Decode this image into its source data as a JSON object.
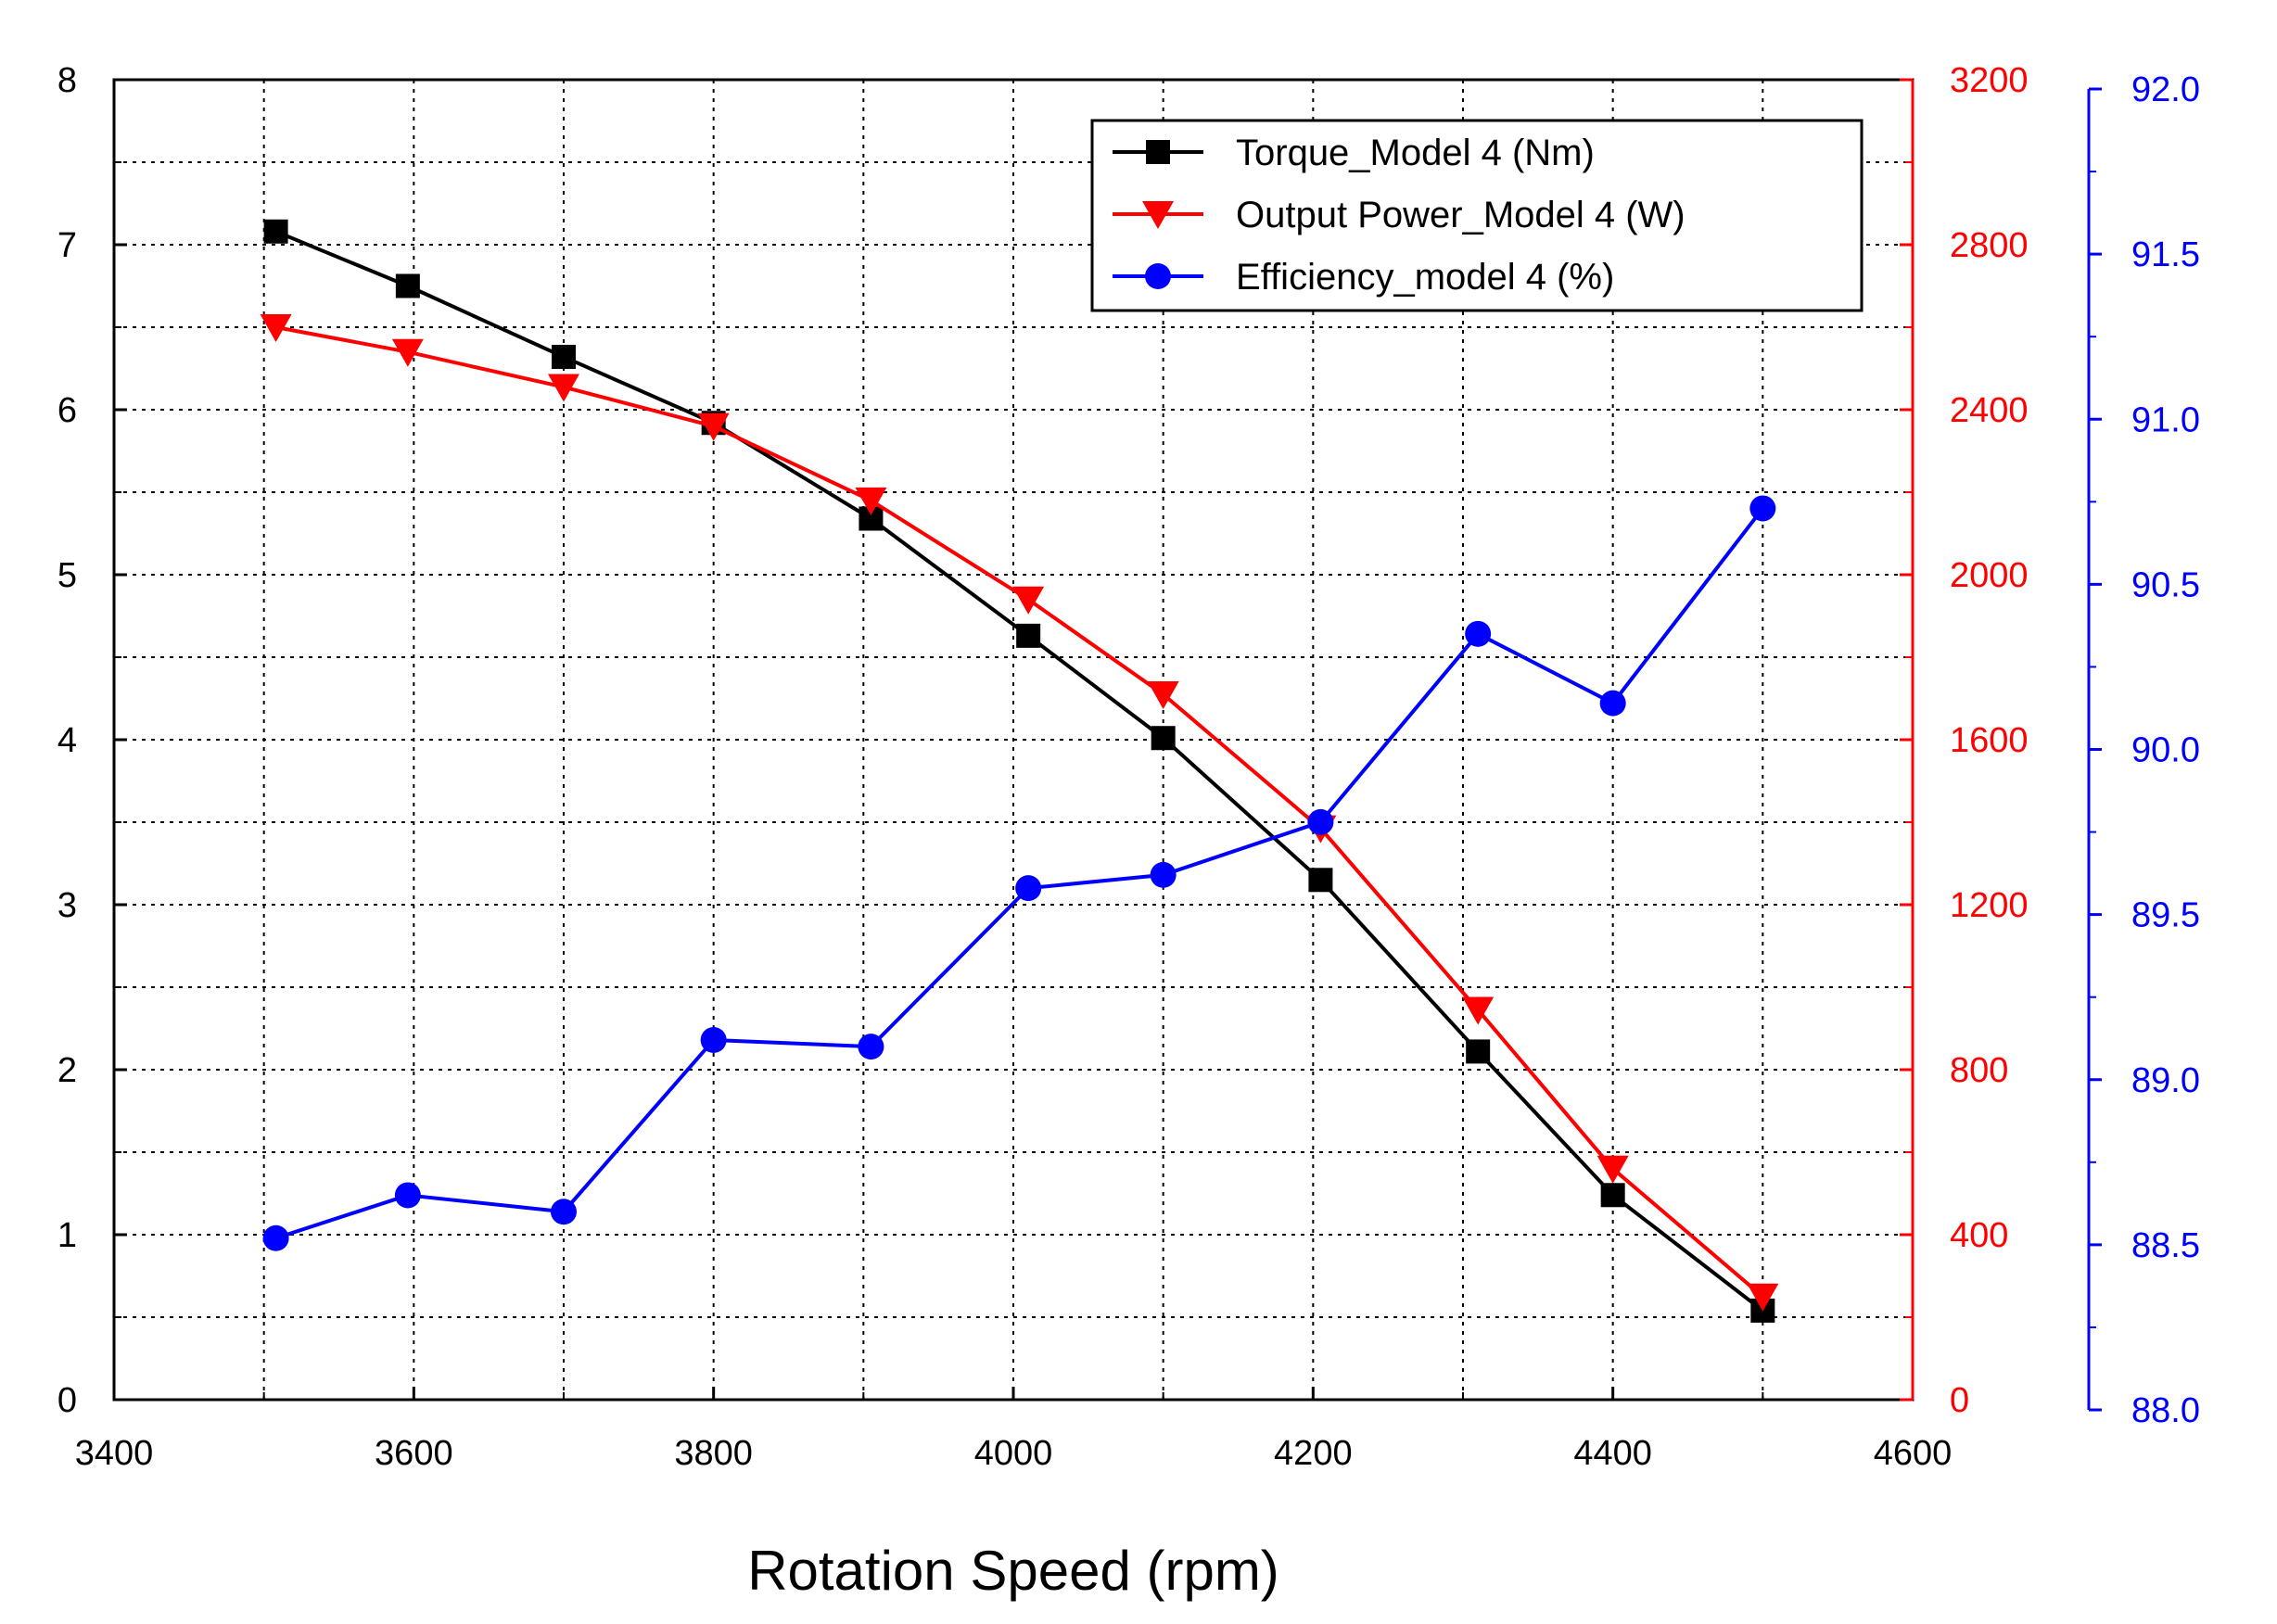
{
  "chart_data": {
    "type": "line",
    "title": "",
    "xlabel": "Rotation Speed (rpm)",
    "xlim": [
      3400,
      4600
    ],
    "xticks": [
      3400,
      3600,
      3800,
      4000,
      4200,
      4400,
      4600
    ],
    "y_axes": [
      {
        "id": "torque",
        "position": "left",
        "color": "#000000",
        "ylim": [
          0,
          8
        ],
        "ticks": [
          "0",
          "1",
          "2",
          "3",
          "4",
          "5",
          "6",
          "7",
          "8"
        ]
      },
      {
        "id": "power",
        "position": "right",
        "color": "#ff0000",
        "ylim": [
          0,
          3200
        ],
        "ticks": [
          "0",
          "400",
          "800",
          "1200",
          "1600",
          "2000",
          "2400",
          "2800",
          "3200"
        ]
      },
      {
        "id": "efficiency",
        "position": "right-offset",
        "color": "#0000ff",
        "ylim": [
          88.0,
          92.0
        ],
        "ticks": [
          "88.0",
          "88.5",
          "89.0",
          "89.5",
          "90.0",
          "90.5",
          "91.0",
          "91.5",
          "92.0"
        ]
      }
    ],
    "grid": true,
    "legend_position": "top-right",
    "series": [
      {
        "name": "Torque_Model 4 (Nm)",
        "axis": "torque",
        "color": "#000000",
        "marker": "square",
        "x": [
          3508,
          3596,
          3700,
          3800,
          3905,
          4010,
          4100,
          4205,
          4310,
          4400,
          4500
        ],
        "values": [
          7.08,
          6.75,
          6.32,
          5.92,
          5.34,
          4.63,
          4.01,
          3.15,
          2.11,
          1.24,
          0.54
        ]
      },
      {
        "name": "Output Power_Model 4 (W)",
        "axis": "power",
        "color": "#ff0000",
        "marker": "triangle-down",
        "x": [
          3508,
          3596,
          3700,
          3800,
          3905,
          4010,
          4100,
          4205,
          4310,
          4400,
          4500
        ],
        "values": [
          2600,
          2540,
          2455,
          2360,
          2180,
          1940,
          1710,
          1385,
          945,
          560,
          250
        ]
      },
      {
        "name": "Efficiency_model 4 (%)",
        "axis": "efficiency",
        "color": "#0000ff",
        "marker": "circle",
        "x": [
          3508,
          3596,
          3700,
          3800,
          3905,
          4010,
          4100,
          4205,
          4310,
          4400,
          4500
        ],
        "values": [
          88.52,
          88.65,
          88.6,
          89.12,
          89.1,
          89.58,
          89.62,
          89.78,
          90.35,
          90.14,
          90.73
        ]
      }
    ]
  }
}
